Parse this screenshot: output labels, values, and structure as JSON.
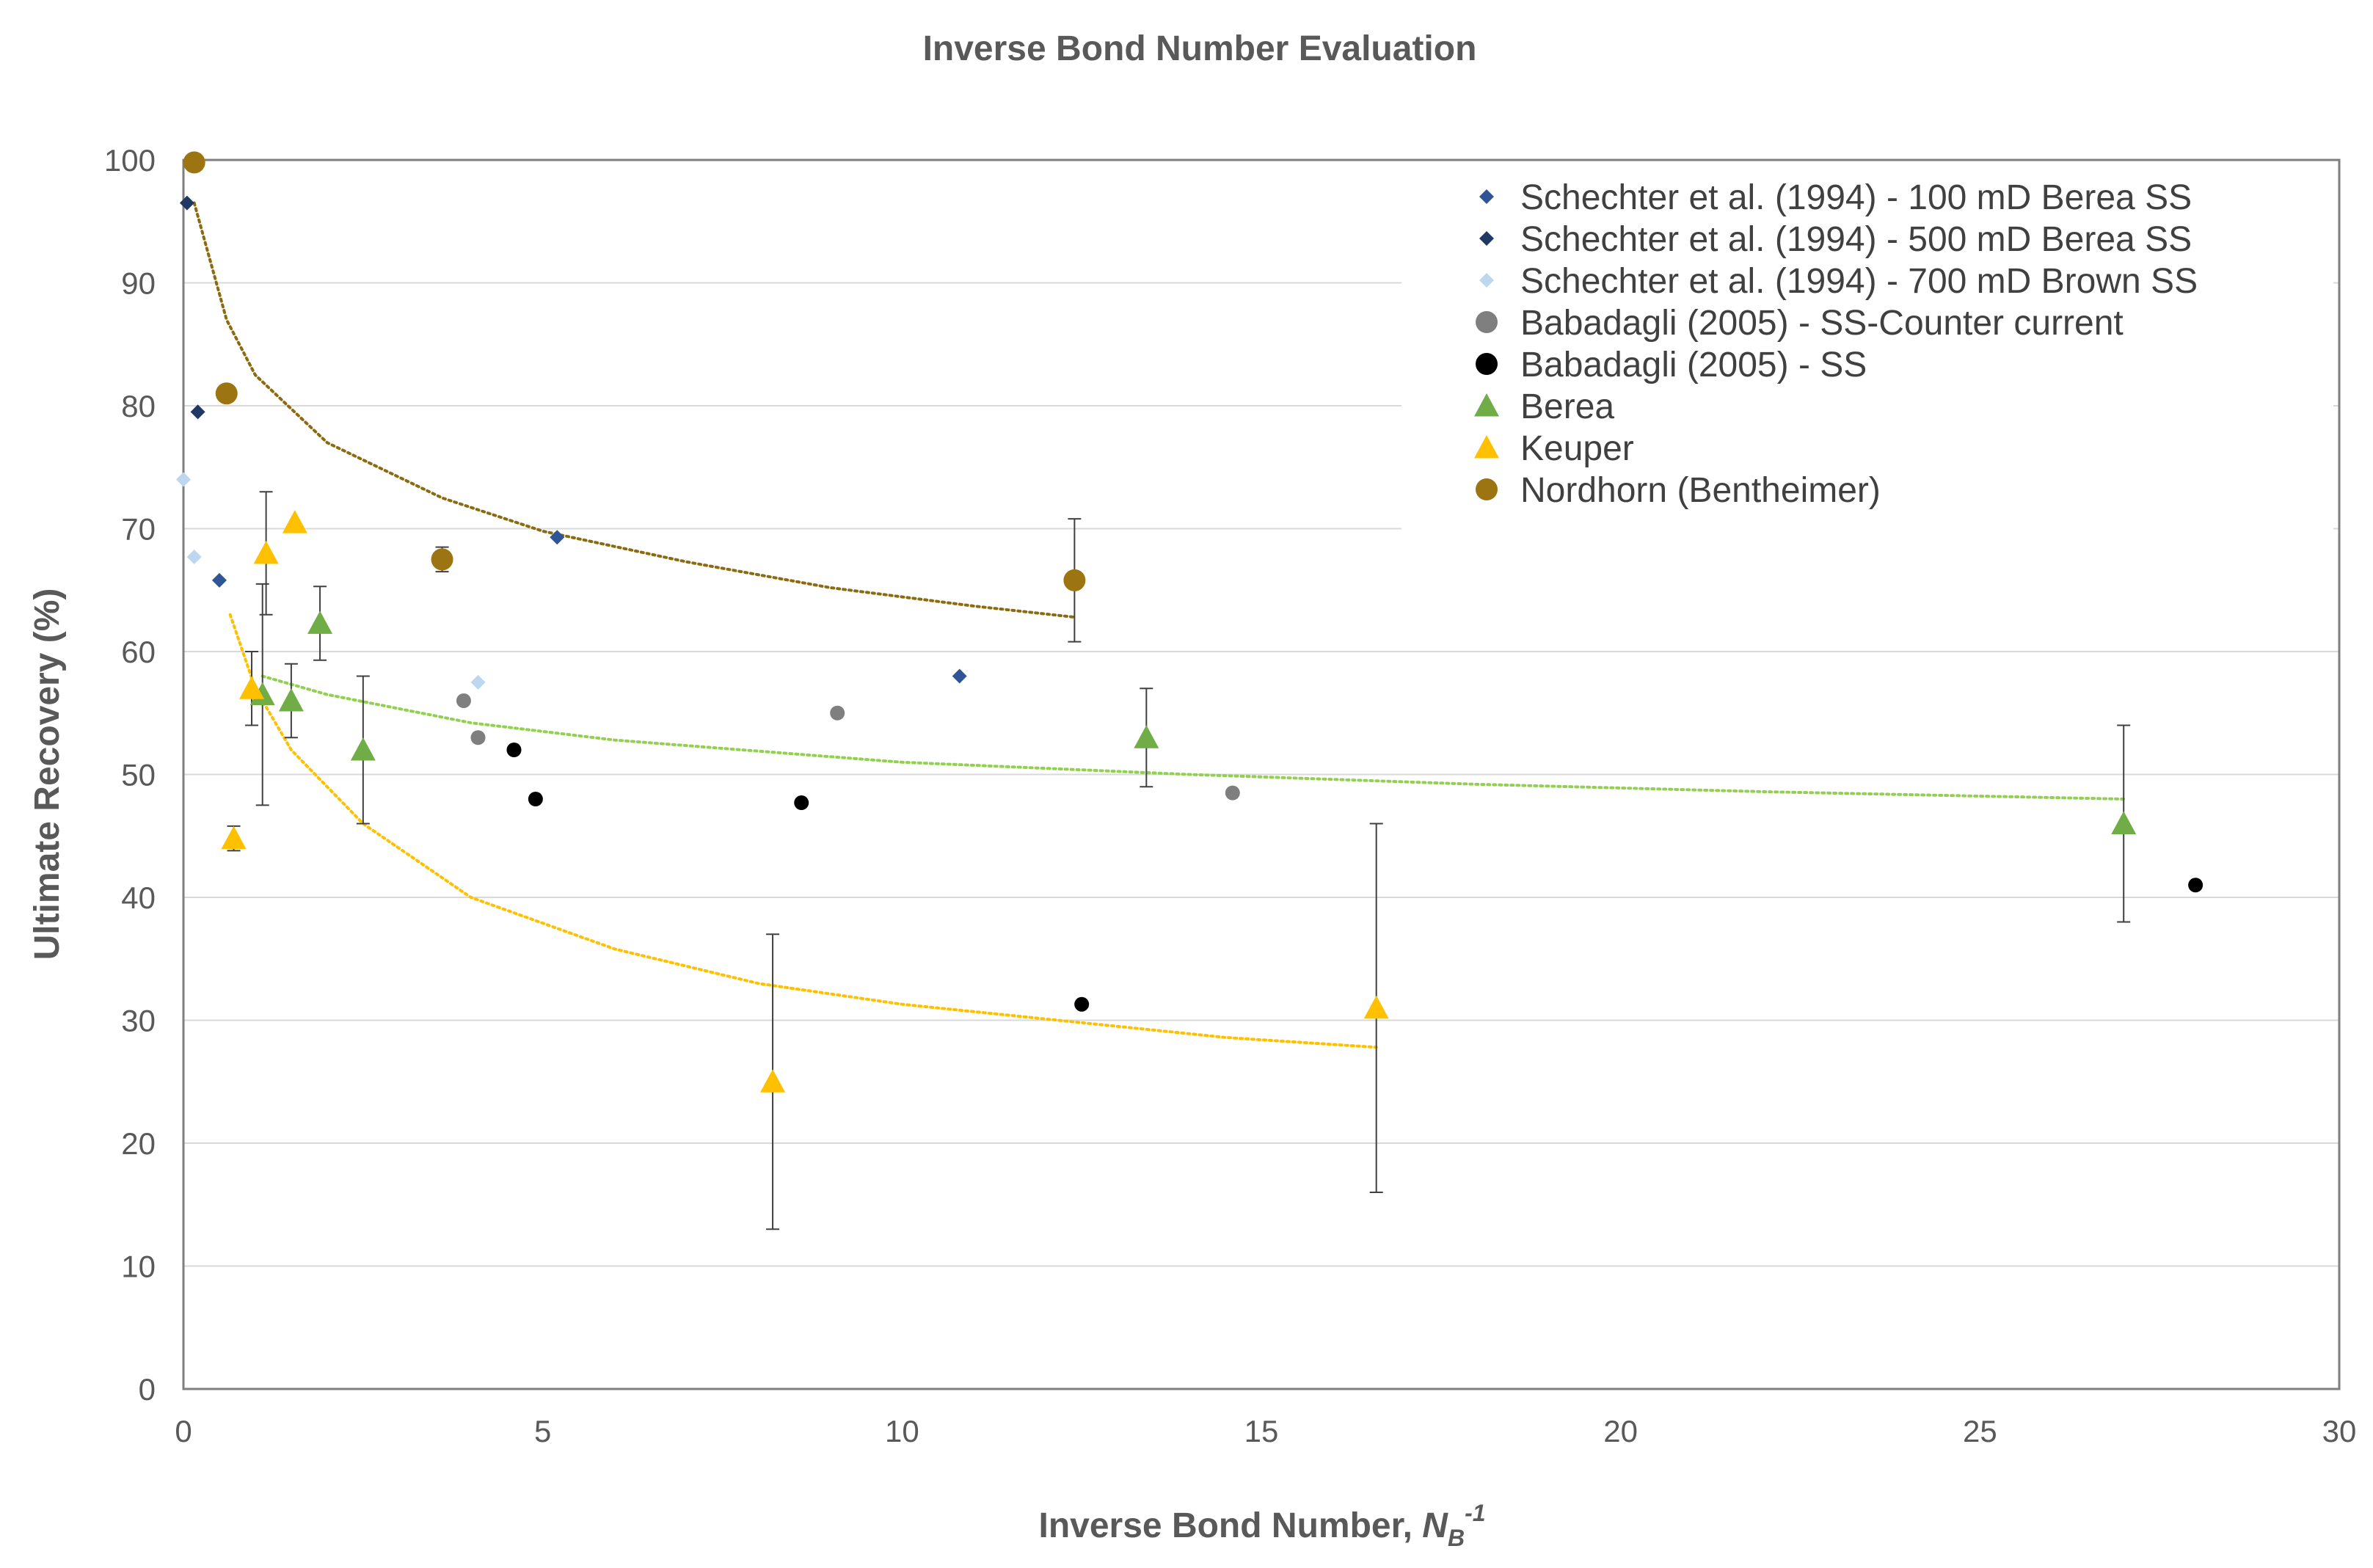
{
  "chart_data": {
    "type": "scatter",
    "title": "Inverse Bond Number Evaluation",
    "xlabel_prefix": "Inverse Bond Number, ",
    "xlabel_var": "N",
    "xlabel_sub": "B",
    "xlabel_sup": "-1",
    "ylabel": "Ultimate Recovery (%)",
    "xlim": [
      0,
      30
    ],
    "ylim": [
      0,
      100
    ],
    "xticks": [
      0,
      5,
      10,
      15,
      20,
      25,
      30
    ],
    "yticks": [
      0,
      10,
      20,
      30,
      40,
      50,
      60,
      70,
      80,
      90,
      100
    ],
    "grid": "horizontal",
    "legend_position": "top-right",
    "series": [
      {
        "name": "Schechter et al. (1994) - 100 mD Berea SS",
        "marker": "diamond",
        "color": "#2f5597",
        "size": "small",
        "points": [
          [
            0.5,
            65.8
          ],
          [
            5.2,
            69.3
          ],
          [
            10.8,
            58.0
          ]
        ]
      },
      {
        "name": "Schechter et al. (1994) - 500 mD Berea SS",
        "marker": "diamond",
        "color": "#1f3864",
        "size": "small",
        "points": [
          [
            0.05,
            96.5
          ],
          [
            0.2,
            79.5
          ]
        ]
      },
      {
        "name": "Schechter et al. (1994) - 700 mD Brown SS",
        "marker": "diamond",
        "color": "#bdd7ee",
        "size": "small",
        "points": [
          [
            0.0,
            74.0
          ],
          [
            0.15,
            67.7
          ],
          [
            4.1,
            57.5
          ]
        ]
      },
      {
        "name": "Babadagli (2005) - SS-Counter current",
        "marker": "circle",
        "color": "#7f7f7f",
        "size": "small",
        "points": [
          [
            3.9,
            56.0
          ],
          [
            4.1,
            53.0
          ],
          [
            9.1,
            55.0
          ],
          [
            14.6,
            48.5
          ]
        ]
      },
      {
        "name": "Babadagli (2005) - SS",
        "marker": "circle",
        "color": "#000000",
        "size": "small",
        "points": [
          [
            4.6,
            52.0
          ],
          [
            4.9,
            48.0
          ],
          [
            8.6,
            47.7
          ],
          [
            12.5,
            31.3
          ],
          [
            28.0,
            41.0
          ]
        ]
      },
      {
        "name": "Berea",
        "marker": "triangle",
        "color": "#70ad47",
        "size": "large",
        "points": [
          [
            1.1,
            56.5
          ],
          [
            1.5,
            56.0
          ],
          [
            1.9,
            62.3
          ],
          [
            2.5,
            52.0
          ],
          [
            13.4,
            53.0
          ],
          [
            27.0,
            46.0
          ]
        ],
        "error": [
          9,
          3,
          3,
          6,
          4,
          8
        ]
      },
      {
        "name": "Keuper",
        "marker": "triangle",
        "color": "#ffc000",
        "size": "large",
        "points": [
          [
            0.7,
            44.8
          ],
          [
            0.95,
            57.0
          ],
          [
            1.15,
            68.0
          ],
          [
            1.55,
            70.5
          ],
          [
            8.2,
            25.0
          ],
          [
            16.6,
            31.0
          ]
        ],
        "error": [
          1,
          3,
          5,
          0,
          12,
          15
        ]
      },
      {
        "name": "Nordhorn (Bentheimer)",
        "marker": "circle",
        "color": "#9c7512",
        "size": "large",
        "points": [
          [
            0.15,
            99.8
          ],
          [
            0.6,
            81.0
          ],
          [
            3.6,
            67.5
          ],
          [
            12.4,
            65.8
          ]
        ],
        "error": [
          0,
          0,
          1,
          5
        ]
      }
    ],
    "trendlines": [
      {
        "series": "Nordhorn (Bentheimer)",
        "color": "#8b6a10",
        "x_range": [
          0.15,
          12.4
        ],
        "points": [
          [
            0.15,
            96.5
          ],
          [
            0.6,
            87.0
          ],
          [
            1.0,
            82.5
          ],
          [
            2.0,
            77.0
          ],
          [
            3.6,
            72.5
          ],
          [
            5.0,
            69.8
          ],
          [
            7.0,
            67.3
          ],
          [
            9.0,
            65.2
          ],
          [
            11.0,
            63.7
          ],
          [
            12.4,
            62.8
          ]
        ]
      },
      {
        "series": "Berea",
        "color": "#92d050",
        "x_range": [
          1.1,
          27.0
        ],
        "points": [
          [
            1.1,
            58.0
          ],
          [
            2.0,
            56.5
          ],
          [
            4.0,
            54.2
          ],
          [
            6.0,
            52.8
          ],
          [
            10.0,
            51.0
          ],
          [
            14.0,
            50.0
          ],
          [
            18.0,
            49.2
          ],
          [
            22.0,
            48.6
          ],
          [
            27.0,
            48.0
          ]
        ]
      },
      {
        "series": "Keuper",
        "color": "#ffc000",
        "x_range": [
          0.65,
          16.6
        ],
        "points": [
          [
            0.65,
            63.0
          ],
          [
            1.0,
            57.0
          ],
          [
            1.5,
            52.0
          ],
          [
            2.5,
            46.0
          ],
          [
            4.0,
            40.0
          ],
          [
            6.0,
            35.8
          ],
          [
            8.0,
            33.0
          ],
          [
            10.0,
            31.3
          ],
          [
            12.5,
            29.8
          ],
          [
            14.5,
            28.6
          ],
          [
            16.6,
            27.8
          ]
        ]
      }
    ]
  }
}
